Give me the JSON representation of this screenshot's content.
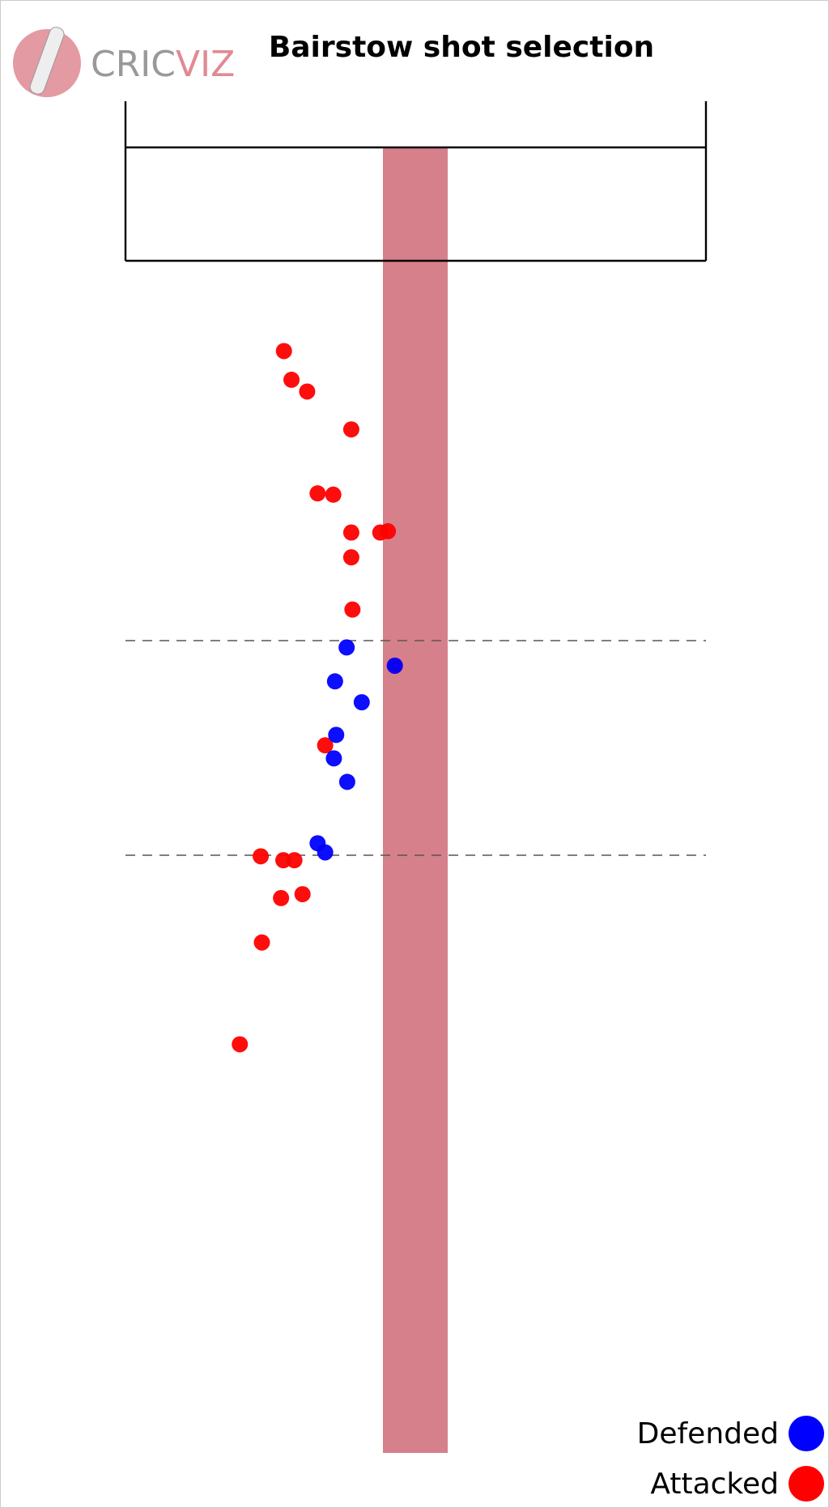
{
  "brand": [
    "CRIC",
    "VIZ"
  ],
  "chart_data": {
    "type": "scatter",
    "title": "Bairstow shot selection",
    "xlim": [
      0,
      100
    ],
    "ylim": [
      0,
      100
    ],
    "legend": "lower right",
    "series": [
      {
        "name": "Defended",
        "color": "#0000ff",
        "x": [
          38.1,
          36.1,
          40.7,
          36.3,
          35.9,
          38.2,
          33.1,
          34.4,
          46.4
        ],
        "y": [
          61.7,
          59.1,
          57.5,
          55.0,
          53.2,
          51.4,
          46.7,
          46.0,
          60.3
        ]
      },
      {
        "name": "Attacked",
        "color": "#ff0000",
        "x": [
          27.3,
          28.6,
          31.3,
          38.9,
          33.1,
          35.8,
          38.9,
          43.9,
          45.2,
          38.9,
          39.1,
          34.4,
          23.3,
          27.2,
          29.1,
          26.8,
          30.5,
          23.5,
          19.7,
          46.4
        ],
        "y": [
          84.4,
          82.2,
          81.3,
          78.4,
          73.5,
          73.4,
          70.5,
          70.5,
          70.6,
          68.6,
          64.6,
          54.2,
          45.7,
          45.4,
          45.4,
          42.5,
          42.8,
          39.1,
          31.3,
          60.3
        ]
      }
    ]
  }
}
